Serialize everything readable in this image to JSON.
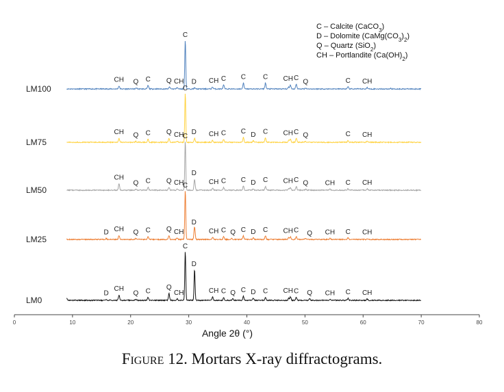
{
  "chart_data": {
    "type": "line",
    "xlabel": "Angle 2θ (°)",
    "xlim": [
      0,
      80
    ],
    "x_ticks": [
      0,
      10,
      20,
      30,
      40,
      50,
      60,
      70,
      80
    ],
    "grid": false,
    "legend": [
      {
        "abbr": "C",
        "text": "Calcite (CaCO",
        "sub": "3",
        "tail": ")"
      },
      {
        "abbr": "D",
        "text": "Dolomite (CaMg(CO",
        "sub": "3",
        "tail": ")",
        "sub2": "2",
        "tail2": ")"
      },
      {
        "abbr": "Q",
        "text": "Quartz (SiO",
        "sub": "2",
        "tail": ")"
      },
      {
        "abbr": "CH",
        "text": "Portlandite (Ca(OH)",
        "sub": "2",
        "tail": ")"
      }
    ],
    "legend_position": "top-right",
    "series": [
      {
        "name": "LM100",
        "color": "#4f81bd",
        "xrange": [
          9,
          70
        ],
        "baseline": 130,
        "peaks": [
          [
            18.0,
            6
          ],
          [
            21.0,
            2
          ],
          [
            23.0,
            7
          ],
          [
            26.7,
            4
          ],
          [
            28.0,
            3
          ],
          [
            29.4,
            100
          ],
          [
            31.0,
            2
          ],
          [
            34.1,
            4
          ],
          [
            36.0,
            8
          ],
          [
            39.4,
            12
          ],
          [
            43.2,
            12
          ],
          [
            47.2,
            4
          ],
          [
            47.5,
            8
          ],
          [
            48.5,
            10
          ],
          [
            50.1,
            2
          ],
          [
            57.4,
            4
          ],
          [
            60.7,
            3
          ],
          [
            64.7,
            1
          ]
        ],
        "labels": [
          [
            "CH",
            18.0
          ],
          [
            "Q",
            20.9
          ],
          [
            "C",
            23.0
          ],
          [
            "Q",
            26.6
          ],
          [
            "CH",
            28.3
          ],
          [
            "C",
            29.4
          ],
          [
            "D",
            30.9
          ],
          [
            "CH",
            34.3
          ],
          [
            "C",
            36.0
          ],
          [
            "C",
            39.4
          ],
          [
            "C",
            43.2
          ],
          [
            "CH",
            47.1
          ],
          [
            "C",
            48.5
          ],
          [
            "Q",
            50.1
          ],
          [
            "C",
            57.4
          ],
          [
            "CH",
            60.7
          ]
        ]
      },
      {
        "name": "LM75",
        "color": "#ffd23f",
        "xrange": [
          9,
          70
        ],
        "baseline": 208,
        "peaks": [
          [
            18.0,
            8
          ],
          [
            20.9,
            2
          ],
          [
            23.0,
            6
          ],
          [
            26.6,
            8
          ],
          [
            28.0,
            3
          ],
          [
            29.4,
            100
          ],
          [
            31.0,
            8
          ],
          [
            34.1,
            4
          ],
          [
            36.0,
            6
          ],
          [
            39.4,
            10
          ],
          [
            41.1,
            3
          ],
          [
            43.2,
            9
          ],
          [
            47.2,
            4
          ],
          [
            47.5,
            6
          ],
          [
            48.5,
            8
          ],
          [
            50.1,
            2
          ],
          [
            57.4,
            4
          ],
          [
            60.7,
            3
          ]
        ],
        "labels": [
          [
            "CH",
            18.0
          ],
          [
            "Q",
            20.9
          ],
          [
            "C",
            23.0
          ],
          [
            "Q",
            26.6
          ],
          [
            "CH",
            28.3
          ],
          [
            "C",
            29.4
          ],
          [
            "D",
            30.9
          ],
          [
            "CH",
            34.3
          ],
          [
            "C",
            36.0
          ],
          [
            "C",
            39.4
          ],
          [
            "D",
            41.1
          ],
          [
            "C",
            43.2
          ],
          [
            "CH",
            47.1
          ],
          [
            "C",
            48.5
          ],
          [
            "Q",
            50.1
          ],
          [
            "C",
            57.4
          ],
          [
            "CH",
            60.7
          ]
        ]
      },
      {
        "name": "LM50",
        "color": "#a5a5a5",
        "xrange": [
          9,
          70
        ],
        "baseline": 278,
        "peaks": [
          [
            18.0,
            13
          ],
          [
            20.9,
            2
          ],
          [
            23.0,
            6
          ],
          [
            26.6,
            6
          ],
          [
            28.0,
            3
          ],
          [
            29.4,
            100
          ],
          [
            31.0,
            22
          ],
          [
            34.1,
            4
          ],
          [
            36.0,
            6
          ],
          [
            39.4,
            8
          ],
          [
            41.1,
            3
          ],
          [
            43.2,
            8
          ],
          [
            47.2,
            4
          ],
          [
            47.5,
            6
          ],
          [
            48.5,
            8
          ],
          [
            50.1,
            2
          ],
          [
            54.3,
            2
          ],
          [
            57.4,
            3
          ],
          [
            60.7,
            3
          ]
        ],
        "labels": [
          [
            "CH",
            18.0
          ],
          [
            "Q",
            20.9
          ],
          [
            "C",
            23.0
          ],
          [
            "Q",
            26.6
          ],
          [
            "CH",
            28.3
          ],
          [
            "C",
            29.4
          ],
          [
            "D",
            30.9
          ],
          [
            "CH",
            34.3
          ],
          [
            "C",
            36.0
          ],
          [
            "C",
            39.4
          ],
          [
            "D",
            41.1
          ],
          [
            "C",
            43.2
          ],
          [
            "CH",
            47.1
          ],
          [
            "C",
            48.5
          ],
          [
            "Q",
            50.1
          ],
          [
            "CH",
            54.3
          ],
          [
            "C",
            57.4
          ],
          [
            "CH",
            60.7
          ]
        ]
      },
      {
        "name": "LM25",
        "color": "#ed7d31",
        "xrange": [
          9,
          70
        ],
        "baseline": 350,
        "peaks": [
          [
            15.8,
            2
          ],
          [
            18.0,
            8
          ],
          [
            20.9,
            2
          ],
          [
            23.0,
            6
          ],
          [
            26.6,
            8
          ],
          [
            28.0,
            3
          ],
          [
            29.4,
            100
          ],
          [
            31.0,
            26
          ],
          [
            34.1,
            4
          ],
          [
            36.0,
            6
          ],
          [
            37.4,
            2
          ],
          [
            39.4,
            7
          ],
          [
            41.1,
            3
          ],
          [
            43.2,
            7
          ],
          [
            47.2,
            4
          ],
          [
            47.5,
            5
          ],
          [
            48.5,
            6
          ],
          [
            50.1,
            2
          ],
          [
            54.3,
            2
          ],
          [
            57.4,
            3
          ],
          [
            60.7,
            2
          ]
        ],
        "labels": [
          [
            "D",
            15.8
          ],
          [
            "CH",
            18.0
          ],
          [
            "Q",
            20.9
          ],
          [
            "C",
            23.0
          ],
          [
            "Q",
            26.6
          ],
          [
            "CH",
            28.3
          ],
          [
            "C",
            29.4
          ],
          [
            "D",
            30.9
          ],
          [
            "CH",
            34.3
          ],
          [
            "C",
            36.0
          ],
          [
            "Q",
            37.6
          ],
          [
            "C",
            39.4
          ],
          [
            "D",
            41.1
          ],
          [
            "C",
            43.2
          ],
          [
            "CH",
            47.1
          ],
          [
            "C",
            48.5
          ],
          [
            "Q",
            50.8
          ],
          [
            "CH",
            54.3
          ],
          [
            "C",
            57.4
          ],
          [
            "CH",
            60.7
          ]
        ]
      },
      {
        "name": "LM0",
        "color": "#111111",
        "xrange": [
          9,
          70
        ],
        "baseline": 439,
        "peaks": [
          [
            9.0,
            4
          ],
          [
            15.8,
            2
          ],
          [
            18.0,
            11
          ],
          [
            20.9,
            2
          ],
          [
            23.0,
            6
          ],
          [
            26.6,
            14
          ],
          [
            28.0,
            3
          ],
          [
            29.4,
            100
          ],
          [
            31.0,
            64
          ],
          [
            34.1,
            7
          ],
          [
            36.0,
            6
          ],
          [
            37.6,
            3
          ],
          [
            39.4,
            8
          ],
          [
            41.1,
            4
          ],
          [
            43.2,
            6
          ],
          [
            47.2,
            5
          ],
          [
            47.5,
            7
          ],
          [
            48.5,
            6
          ],
          [
            50.8,
            3
          ],
          [
            54.3,
            2
          ],
          [
            57.4,
            4
          ],
          [
            60.7,
            3
          ]
        ],
        "labels": [
          [
            "D",
            15.8
          ],
          [
            "CH",
            18.0
          ],
          [
            "Q",
            20.9
          ],
          [
            "C",
            23.0
          ],
          [
            "Q",
            26.6
          ],
          [
            "CH",
            28.3
          ],
          [
            "C",
            29.4
          ],
          [
            "D",
            30.9
          ],
          [
            "CH",
            34.3
          ],
          [
            "C",
            36.0
          ],
          [
            "Q",
            37.6
          ],
          [
            "C",
            39.4
          ],
          [
            "D",
            41.1
          ],
          [
            "C",
            43.2
          ],
          [
            "CH",
            47.1
          ],
          [
            "C",
            48.5
          ],
          [
            "Q",
            50.8
          ],
          [
            "CH",
            54.3
          ],
          [
            "C",
            57.4
          ],
          [
            "CH",
            60.7
          ]
        ]
      }
    ]
  },
  "caption": {
    "lead": "Figure 12.",
    "text": "Mortars X-ray diffractograms."
  }
}
